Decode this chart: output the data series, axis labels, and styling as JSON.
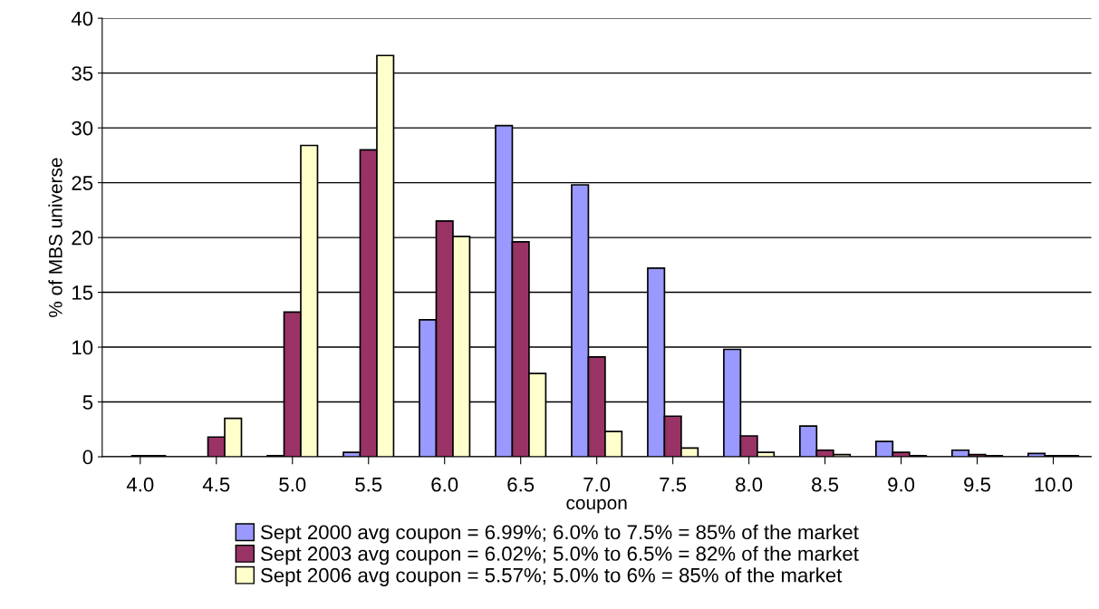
{
  "chart_data": {
    "type": "bar",
    "xlabel": "coupon",
    "ylabel": "% of MBS universe",
    "categories": [
      "4.0",
      "4.5",
      "5.0",
      "5.5",
      "6.0",
      "6.5",
      "7.0",
      "7.5",
      "8.0",
      "8.5",
      "9.0",
      "9.5",
      "10.0"
    ],
    "series": [
      {
        "name": "Sept 2000 avg coupon = 6.99%; 6.0% to 7.5% = 85% of the market",
        "color": "#9999ff",
        "values": [
          null,
          null,
          0.1,
          0.4,
          12.5,
          30.2,
          24.8,
          17.2,
          9.8,
          2.8,
          1.4,
          0.6,
          0.3
        ]
      },
      {
        "name": "Sept 2003 avg coupon = 6.02%; 5.0% to 6.5% = 82% of the market",
        "color": "#993366",
        "values": [
          0.1,
          1.8,
          13.2,
          28.0,
          21.5,
          19.6,
          9.1,
          3.7,
          1.9,
          0.6,
          0.4,
          0.2,
          0.1
        ]
      },
      {
        "name": "Sept 2006 avg coupon = 5.57%; 5.0% to 6% = 85% of the market",
        "color": "#ffffcc",
        "values": [
          0.1,
          3.5,
          28.4,
          36.6,
          20.1,
          7.6,
          2.3,
          0.8,
          0.4,
          0.2,
          0.1,
          0.1,
          0.1
        ]
      }
    ],
    "ylim": [
      0,
      40
    ],
    "yticks": [
      0,
      5,
      10,
      15,
      20,
      25,
      30,
      35,
      40
    ],
    "grid": "y",
    "legend": "bottom"
  }
}
